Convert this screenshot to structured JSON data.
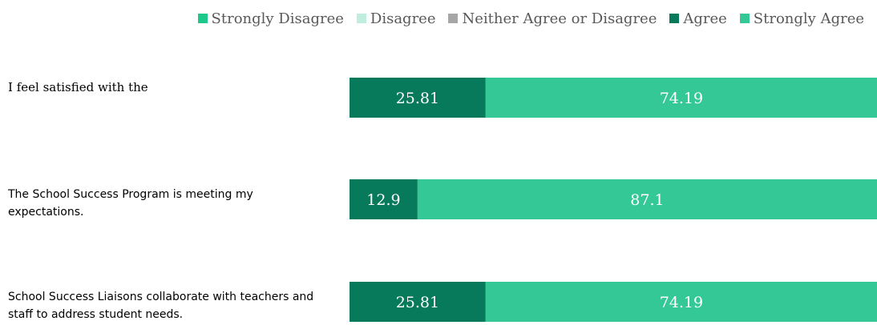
{
  "chart_data": {
    "type": "bar",
    "orientation": "horizontal",
    "stacked": true,
    "percent_stacked": true,
    "categories": [
      "I feel satisfied with the",
      "The School Success Program is meeting my expectations.",
      "School Success Liaisons collaborate with teachers and staff to address student needs."
    ],
    "series": [
      {
        "name": "Strongly Disagree",
        "color": "#1cc88a",
        "values": [
          0,
          0,
          0
        ]
      },
      {
        "name": "Disagree",
        "color": "#bfeede",
        "values": [
          0,
          0,
          0
        ]
      },
      {
        "name": "Neither Agree or Disagree",
        "color": "#a6a6a6",
        "values": [
          0,
          0,
          0
        ]
      },
      {
        "name": "Agree",
        "color": "#087a5c",
        "values": [
          25.81,
          12.9,
          25.81
        ]
      },
      {
        "name": "Strongly Agree",
        "color": "#34c896",
        "values": [
          74.19,
          87.1,
          74.19
        ]
      }
    ],
    "xlim": [
      0,
      100
    ],
    "legend": "top-right",
    "grid": false
  }
}
